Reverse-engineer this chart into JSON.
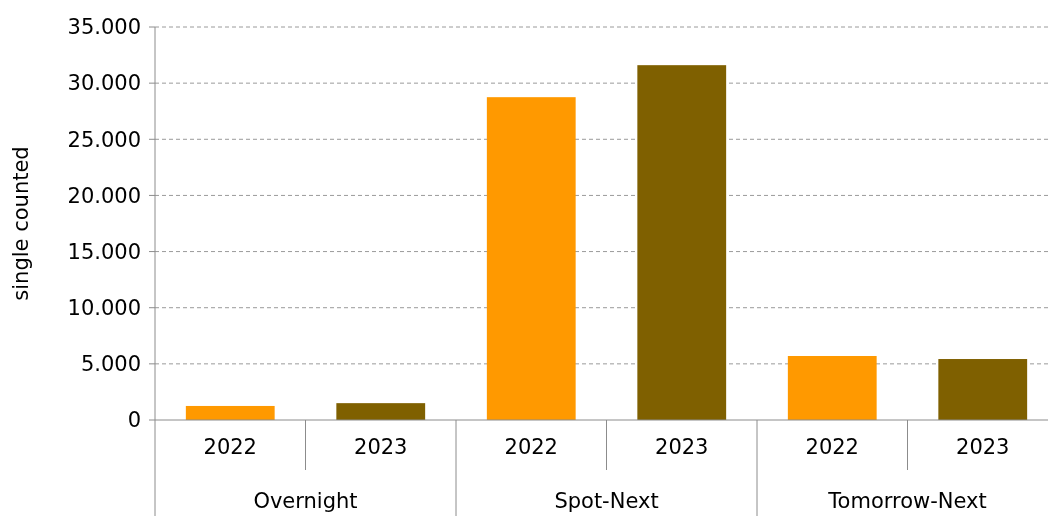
{
  "chart_data": {
    "type": "bar",
    "ylabel": "single counted",
    "categories": [
      "Overnight",
      "Spot-Next",
      "Tomorrow-Next"
    ],
    "series": [
      {
        "name": "2022",
        "color": "#ff9900",
        "values": [
          1250,
          28750,
          5700
        ]
      },
      {
        "name": "2023",
        "color": "#7f6000",
        "values": [
          1500,
          31600,
          5430
        ]
      }
    ],
    "ylim": [
      0,
      35000
    ],
    "yticks": [
      {
        "value": 0,
        "label": "0"
      },
      {
        "value": 5000,
        "label": "5.000"
      },
      {
        "value": 10000,
        "label": "10.000"
      },
      {
        "value": 15000,
        "label": "15.000"
      },
      {
        "value": 20000,
        "label": "20.000"
      },
      {
        "value": 25000,
        "label": "25.000"
      },
      {
        "value": 30000,
        "label": "30.000"
      },
      {
        "value": 35000,
        "label": "35.000"
      }
    ],
    "grid": "y"
  }
}
